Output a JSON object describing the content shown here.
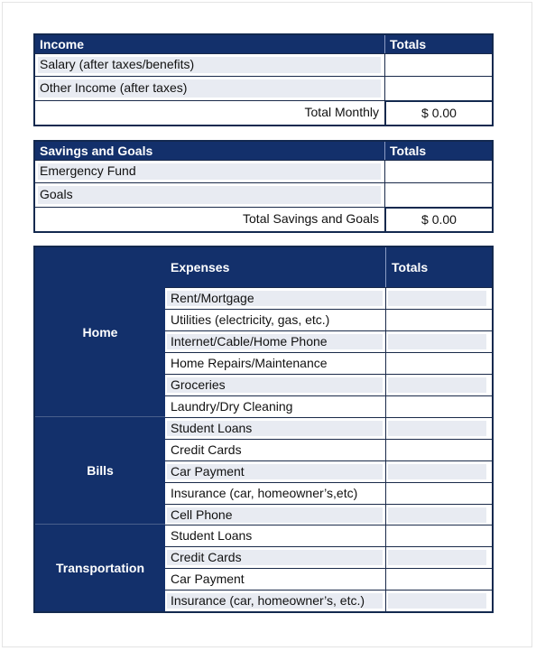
{
  "income": {
    "header": "Income",
    "totals_header": "Totals",
    "rows": [
      "Salary (after taxes/benefits)",
      "Other Income (after taxes)"
    ],
    "total_label": "Total Monthly",
    "total_value": "$ 0.00"
  },
  "savings": {
    "header": "Savings and Goals",
    "totals_header": "Totals",
    "rows": [
      "Emergency Fund",
      "Goals"
    ],
    "total_label": "Total Savings and Goals",
    "total_value": "$ 0.00"
  },
  "expenses": {
    "header": "Expenses",
    "totals_header": "Totals",
    "groups": [
      "Home",
      "Bills",
      "Transportation"
    ],
    "rows": [
      "Rent/Mortgage",
      "Utilities (electricity, gas, etc.)",
      "Internet/Cable/Home Phone",
      "Home Repairs/Maintenance",
      "Groceries",
      "Laundry/Dry Cleaning",
      "Student Loans",
      "Credit Cards",
      "Car Payment",
      "Insurance (car, homeowner’s,etc)",
      "Cell Phone",
      "Student Loans",
      "Credit Cards",
      "Car Payment",
      "Insurance (car, homeowner’s, etc.)"
    ]
  },
  "colors": {
    "header_bg": "#13306b",
    "row_fill": "#e8ebf2",
    "border": "#13294f"
  }
}
